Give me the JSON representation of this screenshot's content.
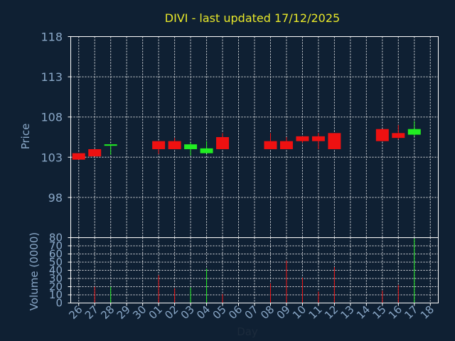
{
  "chart_data": {
    "type": "candlestick",
    "title": "DIVI - last updated 17/12/2025",
    "xlabel": "Day",
    "colors": {
      "up": "#22ee22",
      "down": "#ee1111",
      "background": "#0f2033",
      "grid": "#ffffff",
      "axis_text": "#8aa8c8",
      "title": "#e8e82a"
    },
    "price_panel": {
      "ylabel": "Price",
      "ylim": [
        93,
        118
      ],
      "yticks": [
        "118",
        "113",
        "108",
        "103",
        "98"
      ],
      "grid": true
    },
    "volume_panel": {
      "ylabel": "Volume (0000)",
      "ylim": [
        0,
        80
      ],
      "yticks": [
        "0",
        "10",
        "20",
        "30",
        "40",
        "50",
        "60",
        "70",
        "80"
      ],
      "grid": true
    },
    "x_labels": [
      "26",
      "27",
      "28",
      "29",
      "30",
      "01",
      "02",
      "03",
      "04",
      "05",
      "06",
      "07",
      "08",
      "09",
      "10",
      "11",
      "12",
      "13",
      "14",
      "15",
      "16",
      "17",
      "18"
    ],
    "candles": [
      {
        "day": "26",
        "open": 103.5,
        "close": 102.7,
        "high": 103.5,
        "low": 102.7,
        "volume": 0
      },
      {
        "day": "27",
        "open": 104.0,
        "close": 103.1,
        "high": 104.0,
        "low": 103.1,
        "volume": 20
      },
      {
        "day": "28",
        "open": 104.5,
        "close": 104.6,
        "high": 104.6,
        "low": 103.3,
        "volume": 20
      },
      {
        "day": "01",
        "open": 105.0,
        "close": 104.0,
        "high": 105.0,
        "low": 103.4,
        "volume": 34
      },
      {
        "day": "02",
        "open": 105.0,
        "close": 104.0,
        "high": 105.4,
        "low": 104.0,
        "volume": 18
      },
      {
        "day": "03",
        "open": 104.0,
        "close": 104.6,
        "high": 104.8,
        "low": 103.2,
        "volume": 19
      },
      {
        "day": "04",
        "open": 103.5,
        "close": 104.1,
        "high": 105.0,
        "low": 103.5,
        "volume": 42
      },
      {
        "day": "05",
        "open": 105.5,
        "close": 104.0,
        "high": 106.0,
        "low": 104.0,
        "volume": 11
      },
      {
        "day": "08",
        "open": 105.0,
        "close": 104.0,
        "high": 106.0,
        "low": 104.0,
        "volume": 24
      },
      {
        "day": "09",
        "open": 105.0,
        "close": 104.0,
        "high": 105.5,
        "low": 104.0,
        "volume": 52
      },
      {
        "day": "10",
        "open": 105.6,
        "close": 105.0,
        "high": 105.6,
        "low": 104.8,
        "volume": 31
      },
      {
        "day": "11",
        "open": 105.6,
        "close": 105.0,
        "high": 106.0,
        "low": 104.0,
        "volume": 14
      },
      {
        "day": "12",
        "open": 106.0,
        "close": 104.0,
        "high": 106.0,
        "low": 104.0,
        "volume": 44
      },
      {
        "day": "15",
        "open": 106.5,
        "close": 105.0,
        "high": 106.5,
        "low": 105.0,
        "volume": 15
      },
      {
        "day": "16",
        "open": 106.0,
        "close": 105.4,
        "high": 107.0,
        "low": 105.2,
        "volume": 22
      },
      {
        "day": "17",
        "open": 105.8,
        "close": 106.5,
        "high": 107.5,
        "low": 105.6,
        "volume": 79
      }
    ]
  }
}
